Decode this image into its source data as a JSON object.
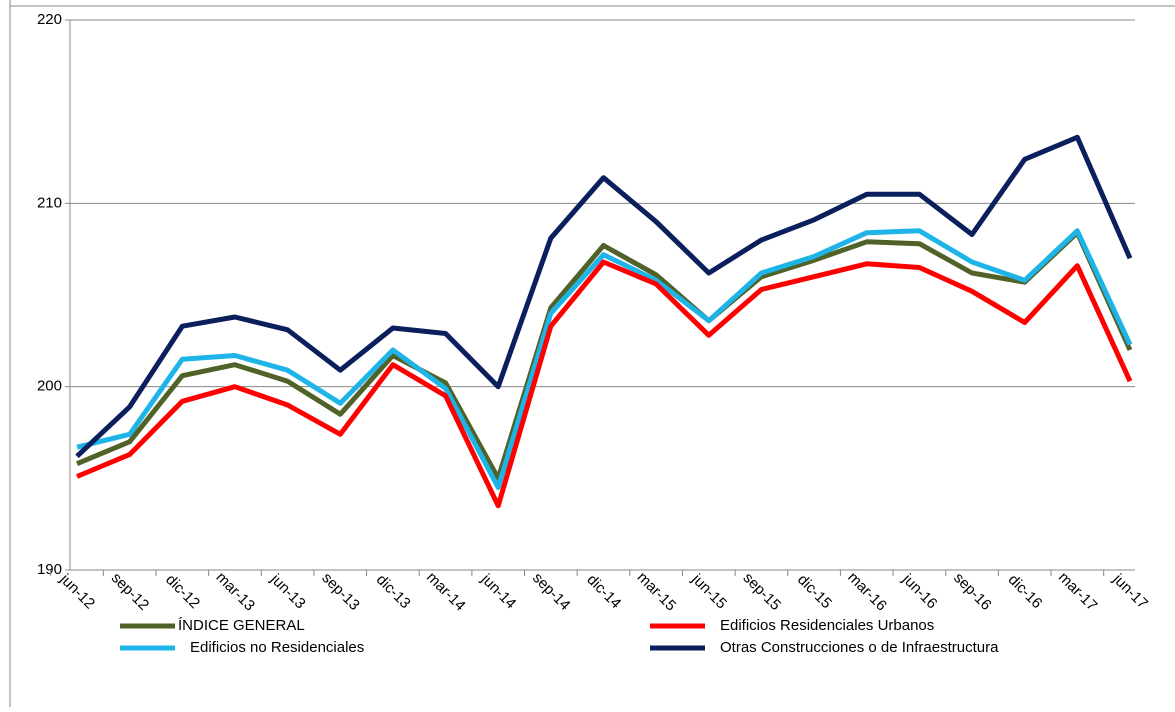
{
  "chart_data": {
    "type": "line",
    "categories": [
      "jun-12",
      "sep-12",
      "dic-12",
      "mar-13",
      "jun-13",
      "sep-13",
      "dic-13",
      "mar-14",
      "jun-14",
      "sep-14",
      "dic-14",
      "mar-15",
      "jun-15",
      "sep-15",
      "dic-15",
      "mar-16",
      "jun-16",
      "sep-16",
      "dic-16",
      "mar-17",
      "jun-17"
    ],
    "series": [
      {
        "name": "ÍNDICE GENERAL",
        "color": "#4f6228",
        "values": [
          195.8,
          197.0,
          200.6,
          201.2,
          200.3,
          198.5,
          201.7,
          200.2,
          195.0,
          204.3,
          207.7,
          206.1,
          203.6,
          206.0,
          206.9,
          207.9,
          207.8,
          206.2,
          205.7,
          208.4,
          202.0
        ]
      },
      {
        "name": "Edificios Residenciales Urbanos",
        "color": "#ff0000",
        "values": [
          195.1,
          196.3,
          199.2,
          200.0,
          199.0,
          197.4,
          201.2,
          199.5,
          193.5,
          203.3,
          206.8,
          205.6,
          202.8,
          205.3,
          206.0,
          206.7,
          206.5,
          205.2,
          203.5,
          206.6,
          200.3
        ]
      },
      {
        "name": "Edificios no Residenciales",
        "color": "#1fb4e8",
        "values": [
          196.7,
          197.4,
          201.5,
          201.7,
          200.9,
          199.1,
          202.0,
          199.9,
          194.5,
          204.0,
          207.2,
          205.8,
          203.6,
          206.2,
          207.1,
          208.4,
          208.5,
          206.8,
          205.8,
          208.5,
          202.3
        ]
      },
      {
        "name": "Otras Construcciones o de Infraestructura",
        "color": "#0a1f5c",
        "values": [
          196.2,
          198.9,
          203.3,
          203.8,
          203.1,
          200.9,
          203.2,
          202.9,
          200.0,
          208.1,
          211.4,
          209.0,
          206.2,
          208.0,
          209.1,
          210.5,
          210.5,
          208.3,
          212.4,
          213.6,
          207.0
        ]
      }
    ],
    "ylim": [
      190,
      220
    ],
    "yticks": [
      190,
      200,
      210,
      220
    ],
    "grid": true
  }
}
